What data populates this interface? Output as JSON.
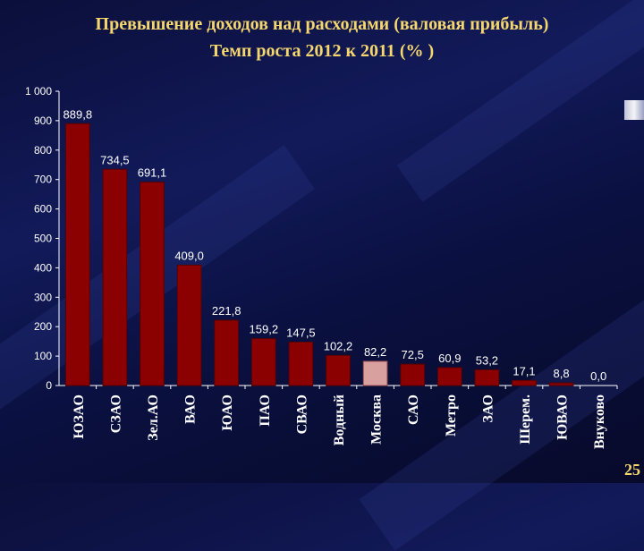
{
  "title": "Превышение доходов над расходами (валовая прибыль)",
  "subtitle": "Темп роста 2012 к 2011 (% )",
  "page_number": "25",
  "colors": {
    "background": "#0b0f3a",
    "title": "#f5d76e",
    "bar": "#8b0000",
    "bar_highlight": "#d9a0a0",
    "text": "#ffffff"
  },
  "chart_data": {
    "type": "bar",
    "categories": [
      "ЮЗАО",
      "СЗАО",
      "Зел.АО",
      "ВАО",
      "ЮАО",
      "ПАО",
      "СВАО",
      "Водный",
      "Москва",
      "САО",
      "Метро",
      "ЗАО",
      "Шерем.",
      "ЮВАО",
      "Внуково"
    ],
    "values": [
      889.8,
      734.5,
      691.1,
      409.0,
      221.8,
      159.2,
      147.5,
      102.2,
      82.2,
      72.5,
      60.9,
      53.2,
      17.1,
      8.8,
      0.0
    ],
    "value_labels": [
      "889,8",
      "734,5",
      "691,1",
      "409,0",
      "221,8",
      "159,2",
      "147,5",
      "102,2",
      "82,2",
      "72,5",
      "60,9",
      "53,2",
      "17,1",
      "8,8",
      "0,0"
    ],
    "highlight_index": 8,
    "yticks": [
      "0",
      "100",
      "200",
      "300",
      "400",
      "500",
      "600",
      "700",
      "800",
      "900",
      "1 000"
    ],
    "ylim": [
      0,
      1000
    ],
    "grid": false,
    "legend": "none"
  }
}
